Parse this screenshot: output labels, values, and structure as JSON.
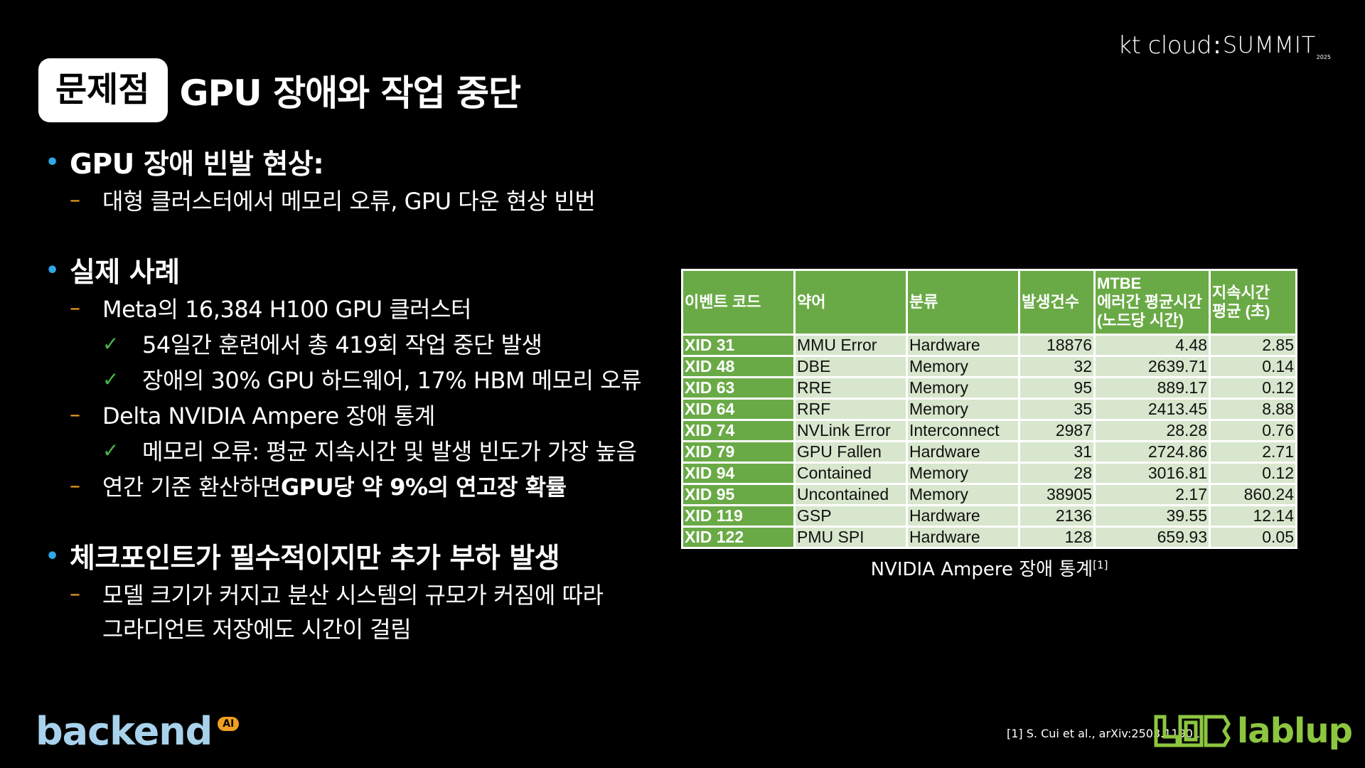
{
  "brand_top": {
    "kt": "kt cloud",
    "colon": ":",
    "summit": "SUMMIT",
    "year": "2025"
  },
  "title": {
    "badge": "문제점",
    "text": "GPU 장애와 작업 중단"
  },
  "bullets": {
    "s1_title": "GPU 장애 빈발 현상:",
    "s1_sub1": "대형 클러스터에서 메모리 오류, GPU 다운 현상 빈번",
    "s2_title": "실제 사례",
    "s2_sub1": "Meta의 16,384 H100 GPU 클러스터",
    "s2_sub1_c1": "54일간 훈련에서 총 419회 작업 중단 발생",
    "s2_sub1_c2": "장애의 30% GPU 하드웨어, 17% HBM 메모리 오류",
    "s2_sub2": "Delta NVIDIA Ampere 장애 통계",
    "s2_sub2_c1": "메모리 오류: 평균 지속시간 및 발생 빈도가 가장 높음",
    "s2_sub3_prefix": "연간 기준 환산하면 ",
    "s2_sub3_bold": "GPU당 약 9%의 연고장 확률",
    "s3_title": "체크포인트가 필수적이지만 추가 부하 발생",
    "s3_sub1_line1": "모델 크기가 커지고 분산 시스템의 규모가 커짐에 따라",
    "s3_sub1_line2": "그라디언트 저장에도 시간이 걸림"
  },
  "table": {
    "headers": [
      "이벤트 코드",
      "약어",
      "분류",
      "발생건수",
      "MTBE\n에러간 평균시간\n(노드당 시간)",
      "지속시간\n평균 (초)"
    ],
    "rows": [
      [
        "XID 31",
        "MMU Error",
        "Hardware",
        "18876",
        "4.48",
        "2.85"
      ],
      [
        "XID 48",
        "DBE",
        "Memory",
        "32",
        "2639.71",
        "0.14"
      ],
      [
        "XID 63",
        "RRE",
        "Memory",
        "95",
        "889.17",
        "0.12"
      ],
      [
        "XID 64",
        "RRF",
        "Memory",
        "35",
        "2413.45",
        "8.88"
      ],
      [
        "XID 74",
        "NVLink Error",
        "Interconnect",
        "2987",
        "28.28",
        "0.76"
      ],
      [
        "XID 79",
        "GPU Fallen",
        "Hardware",
        "31",
        "2724.86",
        "2.71"
      ],
      [
        "XID 94",
        "Contained",
        "Memory",
        "28",
        "3016.81",
        "0.12"
      ],
      [
        "XID 95",
        "Uncontained",
        "Memory",
        "38905",
        "2.17",
        "860.24"
      ],
      [
        "XID 119",
        "GSP",
        "Hardware",
        "2136",
        "39.55",
        "12.14"
      ],
      [
        "XID 122",
        "PMU SPI",
        "Hardware",
        "128",
        "659.93",
        "0.05"
      ]
    ],
    "caption": "NVIDIA Ampere 장애 통계",
    "caption_ref": "[1]"
  },
  "footnote": "[1] S. Cui et al., arXiv:2503.11901",
  "brand_bl": {
    "name": "backend",
    "badge": "AI"
  },
  "brand_br": {
    "name": "lablup"
  },
  "colors": {
    "accent_green": "#6aaa46",
    "cell_green": "#d7e6cc",
    "bullet_blue": "#30a7e6",
    "dash_orange": "#f0a020",
    "check_green": "#4ab84a"
  }
}
